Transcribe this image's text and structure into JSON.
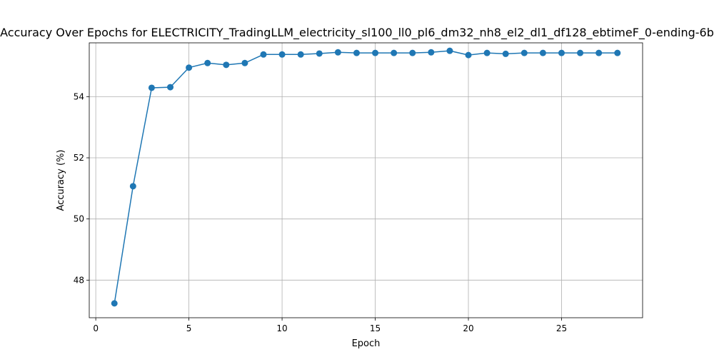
{
  "chart_data": {
    "type": "line",
    "title": "Accuracy Over Epochs for ELECTRICITY_TradingLLM_electricity_sl100_ll0_pl6_dm32_nh8_el2_dl1_df128_ebtimeF_0-ending-6b",
    "xlabel": "Epoch",
    "ylabel": "Accuracy (%)",
    "xlim": [
      -0.35,
      29.35
    ],
    "ylim": [
      46.77,
      55.76
    ],
    "xticks": [
      0,
      5,
      10,
      15,
      20,
      25
    ],
    "yticks": [
      48,
      50,
      52,
      54
    ],
    "grid": true,
    "color": "#1f77b4",
    "x": [
      1,
      2,
      3,
      4,
      5,
      6,
      7,
      8,
      9,
      10,
      11,
      12,
      13,
      14,
      15,
      16,
      17,
      18,
      19,
      20,
      21,
      22,
      23,
      24,
      25,
      26,
      27,
      28
    ],
    "y": [
      47.24,
      51.07,
      54.29,
      54.31,
      54.95,
      55.1,
      55.04,
      55.1,
      55.38,
      55.38,
      55.38,
      55.41,
      55.45,
      55.43,
      55.43,
      55.43,
      55.43,
      55.45,
      55.5,
      55.36,
      55.43,
      55.4,
      55.43,
      55.43,
      55.43,
      55.43,
      55.43,
      55.43
    ]
  }
}
